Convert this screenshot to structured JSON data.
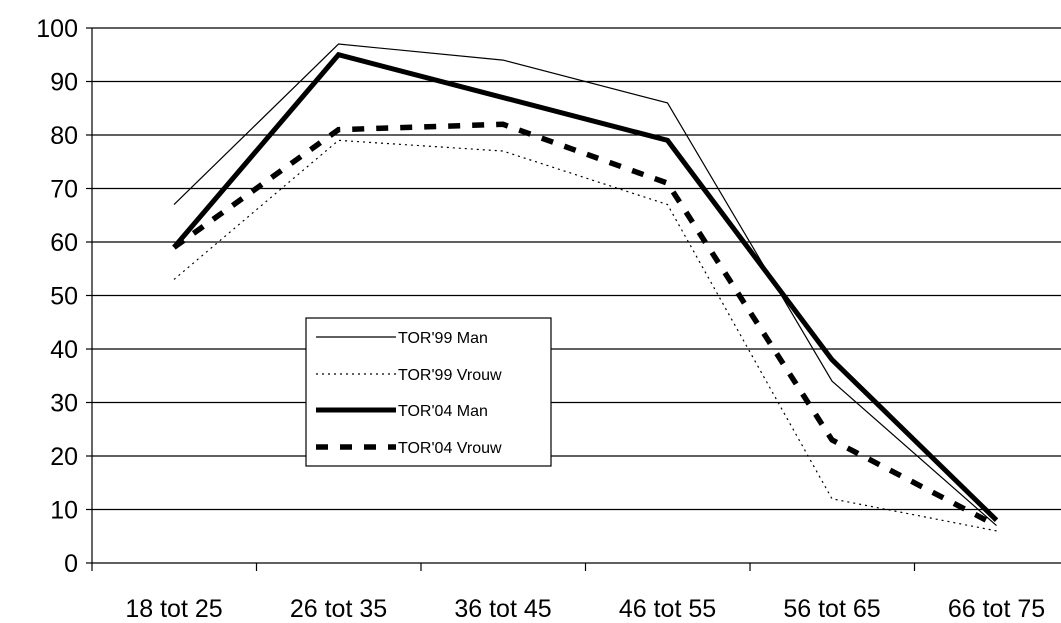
{
  "chart_data": {
    "type": "line",
    "title": "",
    "xlabel": "",
    "ylabel": "",
    "categories": [
      "18 tot 25",
      "26 tot 35",
      "36 tot 45",
      "46 tot 55",
      "56 tot 65",
      "66 tot 75"
    ],
    "ylim": [
      0,
      100
    ],
    "yticks": [
      0,
      10,
      20,
      30,
      40,
      50,
      60,
      70,
      80,
      90,
      100
    ],
    "grid": "horizontal",
    "legend_position": "center-left",
    "series": [
      {
        "name": "TOR'99 Man",
        "values": [
          67,
          97,
          94,
          86,
          34,
          7
        ],
        "color": "#000000",
        "style": "thin-solid"
      },
      {
        "name": "TOR'99 Vrouw",
        "values": [
          53,
          79,
          77,
          67,
          12,
          6
        ],
        "color": "#000000",
        "style": "dotted"
      },
      {
        "name": "TOR'04 Man",
        "values": [
          59,
          95,
          87,
          79,
          38,
          8
        ],
        "color": "#000000",
        "style": "thick-solid"
      },
      {
        "name": "TOR'04 Vrouw",
        "values": [
          59,
          81,
          82,
          71,
          23,
          7
        ],
        "color": "#000000",
        "style": "thick-dashed"
      }
    ]
  }
}
